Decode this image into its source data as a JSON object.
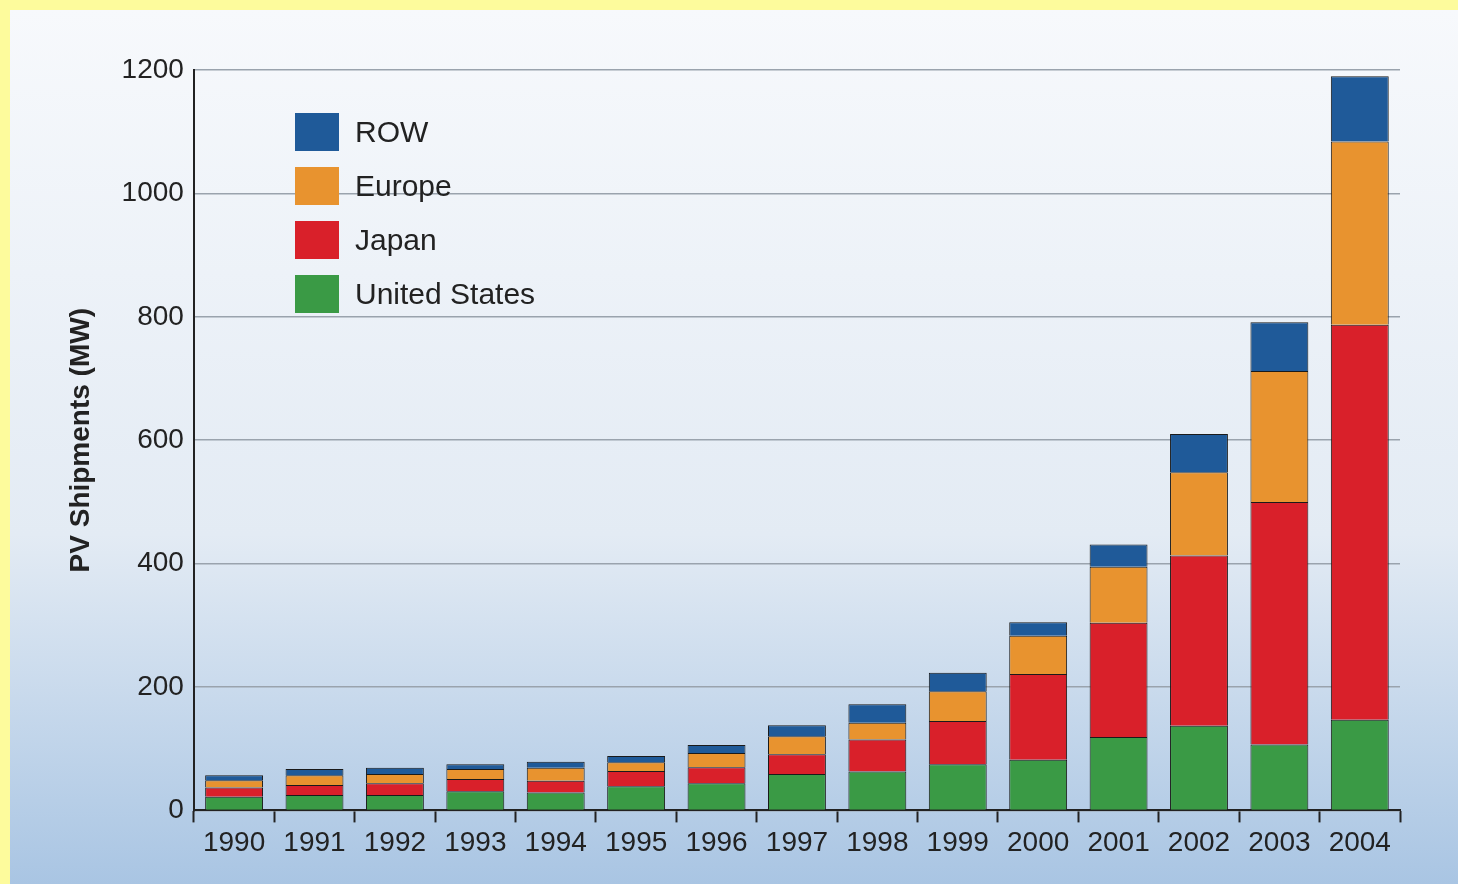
{
  "chart_data": {
    "type": "bar",
    "stacked": true,
    "ylabel": "PV Shipments (MW)",
    "categories": [
      "1990",
      "1991",
      "1992",
      "1993",
      "1994",
      "1995",
      "1996",
      "1997",
      "1998",
      "1999",
      "2000",
      "2001",
      "2002",
      "2003",
      "2004"
    ],
    "series": [
      {
        "name": "United States",
        "color": "#3a9a45",
        "values": [
          22,
          25,
          25,
          31,
          29,
          39,
          44,
          59,
          63,
          75,
          82,
          119,
          137,
          107,
          147
        ]
      },
      {
        "name": "Japan",
        "color": "#d9202a",
        "values": [
          15,
          16,
          19,
          20,
          19,
          25,
          26,
          32,
          52,
          70,
          139,
          185,
          276,
          393,
          640
        ]
      },
      {
        "name": "Europe",
        "color": "#e8932f",
        "values": [
          12,
          16,
          15,
          16,
          21,
          14,
          23,
          29,
          27,
          48,
          62,
          91,
          135,
          212,
          297
        ]
      },
      {
        "name": "ROW",
        "color": "#1f5a99",
        "values": [
          8,
          10,
          10,
          8,
          10,
          10,
          13,
          18,
          30,
          30,
          22,
          36,
          62,
          79,
          106
        ]
      }
    ],
    "ylim": [
      0,
      1200
    ],
    "yticks": [
      0,
      200,
      400,
      600,
      800,
      1000,
      1200
    ],
    "grid": "y",
    "legend": "top left"
  }
}
